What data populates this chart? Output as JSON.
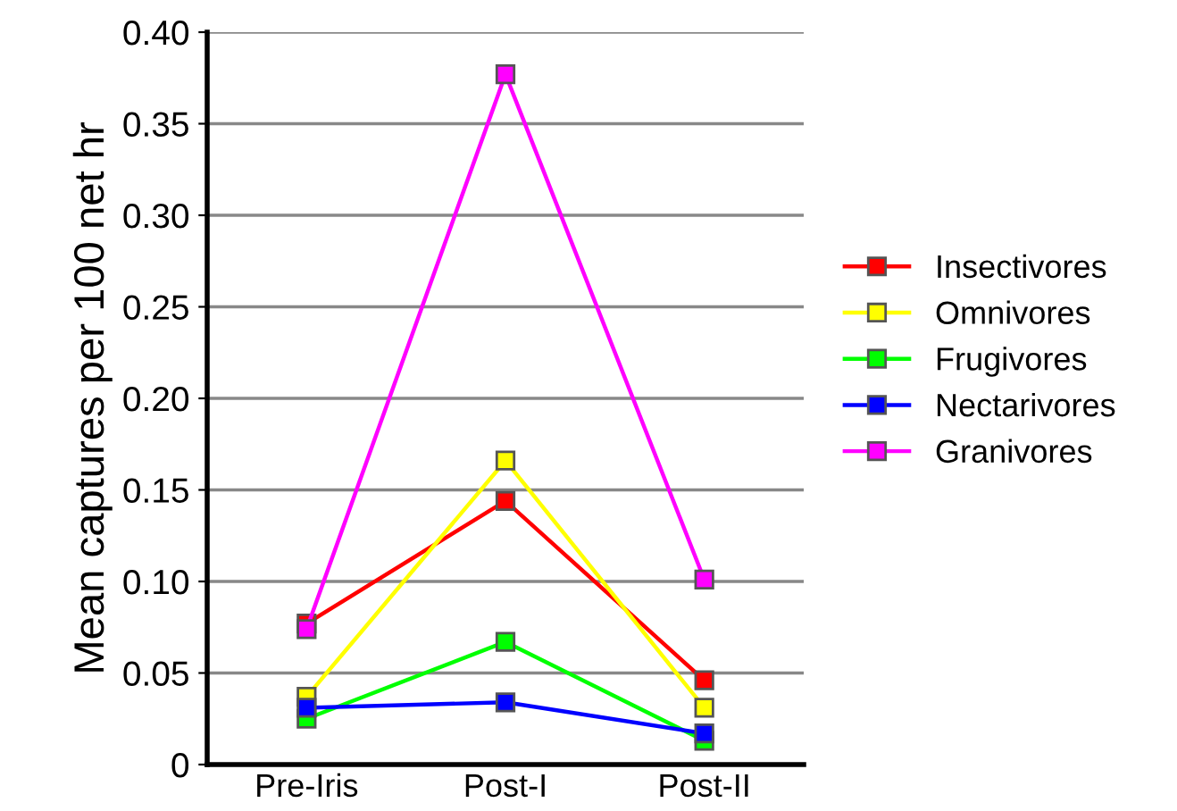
{
  "chart_data": {
    "type": "line",
    "ylabel": "Mean captures per 100 net hr",
    "categories": [
      "Pre-Iris",
      "Post-I",
      "Post-II"
    ],
    "ylim": [
      0,
      0.4
    ],
    "yticks": [
      {
        "value": 0,
        "label": "0"
      },
      {
        "value": 0.05,
        "label": "0.05"
      },
      {
        "value": 0.1,
        "label": "0.10"
      },
      {
        "value": 0.15,
        "label": "0.15"
      },
      {
        "value": 0.2,
        "label": "0.20"
      },
      {
        "value": 0.25,
        "label": "0.25"
      },
      {
        "value": 0.3,
        "label": "0.30"
      },
      {
        "value": 0.35,
        "label": "0.35"
      },
      {
        "value": 0.4,
        "label": "0.40"
      }
    ],
    "grid": "y",
    "legend": "right",
    "marker": "square",
    "line_style": "solid",
    "series": [
      {
        "name": "Insectivores",
        "color": "#ff0000",
        "values": [
          0.077,
          0.144,
          0.046
        ]
      },
      {
        "name": "Omnivores",
        "color": "#ffff00",
        "values": [
          0.037,
          0.166,
          0.031
        ]
      },
      {
        "name": "Frugivores",
        "color": "#00ff00",
        "values": [
          0.025,
          0.067,
          0.013
        ]
      },
      {
        "name": "Nectarivores",
        "color": "#0000ff",
        "values": [
          0.031,
          0.034,
          0.017
        ]
      },
      {
        "name": "Granivores",
        "color": "#ff00ff",
        "values": [
          0.074,
          0.377,
          0.101
        ]
      }
    ]
  }
}
